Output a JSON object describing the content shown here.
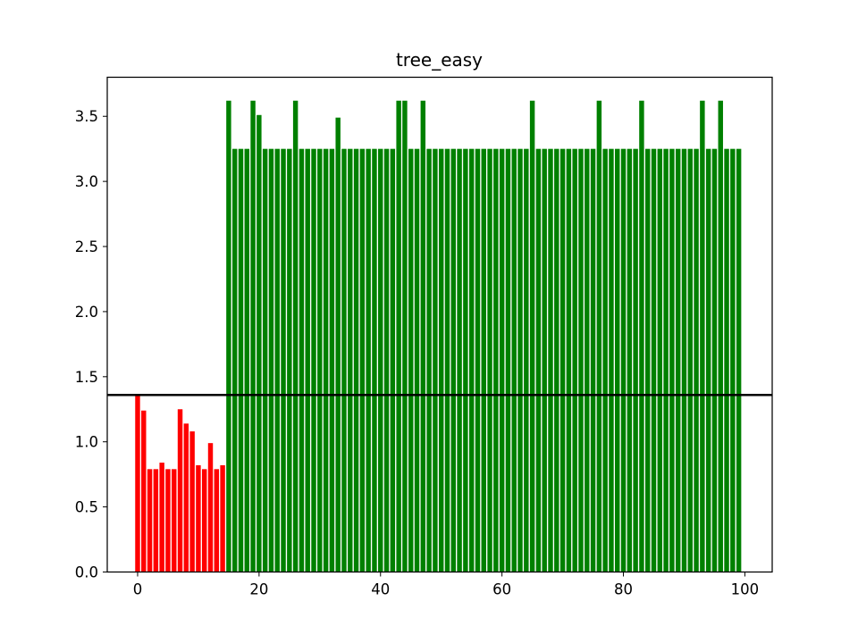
{
  "chart_data": {
    "type": "bar",
    "title": "tree_easy",
    "xlabel": "",
    "ylabel": "",
    "xlim": [
      -5,
      104.5
    ],
    "ylim": [
      0,
      3.8
    ],
    "xticks": [
      0,
      20,
      40,
      60,
      80,
      100
    ],
    "yticks": [
      0.0,
      0.5,
      1.0,
      1.5,
      2.0,
      2.5,
      3.0,
      3.5
    ],
    "grid": false,
    "reference_line": {
      "y": 1.36,
      "color": "#000000"
    },
    "colors": {
      "below": "#ff0000",
      "above": "#008000"
    },
    "x": [
      0,
      1,
      2,
      3,
      4,
      5,
      6,
      7,
      8,
      9,
      10,
      11,
      12,
      13,
      14,
      15,
      16,
      17,
      18,
      19,
      20,
      21,
      22,
      23,
      24,
      25,
      26,
      27,
      28,
      29,
      30,
      31,
      32,
      33,
      34,
      35,
      36,
      37,
      38,
      39,
      40,
      41,
      42,
      43,
      44,
      45,
      46,
      47,
      48,
      49,
      50,
      51,
      52,
      53,
      54,
      55,
      56,
      57,
      58,
      59,
      60,
      61,
      62,
      63,
      64,
      65,
      66,
      67,
      68,
      69,
      70,
      71,
      72,
      73,
      74,
      75,
      76,
      77,
      78,
      79,
      80,
      81,
      82,
      83,
      84,
      85,
      86,
      87,
      88,
      89,
      90,
      91,
      92,
      93,
      94,
      95,
      96,
      97,
      98,
      99
    ],
    "values": [
      1.36,
      1.24,
      0.79,
      0.79,
      0.84,
      0.79,
      0.79,
      1.25,
      1.14,
      1.08,
      0.82,
      0.79,
      0.99,
      0.79,
      0.82,
      3.62,
      3.25,
      3.25,
      3.25,
      3.62,
      3.51,
      3.25,
      3.25,
      3.25,
      3.25,
      3.25,
      3.62,
      3.25,
      3.25,
      3.25,
      3.25,
      3.25,
      3.25,
      3.49,
      3.25,
      3.25,
      3.25,
      3.25,
      3.25,
      3.25,
      3.25,
      3.25,
      3.25,
      3.62,
      3.62,
      3.25,
      3.25,
      3.62,
      3.25,
      3.25,
      3.25,
      3.25,
      3.25,
      3.25,
      3.25,
      3.25,
      3.25,
      3.25,
      3.25,
      3.25,
      3.25,
      3.25,
      3.25,
      3.25,
      3.25,
      3.62,
      3.25,
      3.25,
      3.25,
      3.25,
      3.25,
      3.25,
      3.25,
      3.25,
      3.25,
      3.25,
      3.62,
      3.25,
      3.25,
      3.25,
      3.25,
      3.25,
      3.25,
      3.62,
      3.25,
      3.25,
      3.25,
      3.25,
      3.25,
      3.25,
      3.25,
      3.25,
      3.25,
      3.62,
      3.25,
      3.25,
      3.62,
      3.25,
      3.25,
      3.25
    ]
  }
}
